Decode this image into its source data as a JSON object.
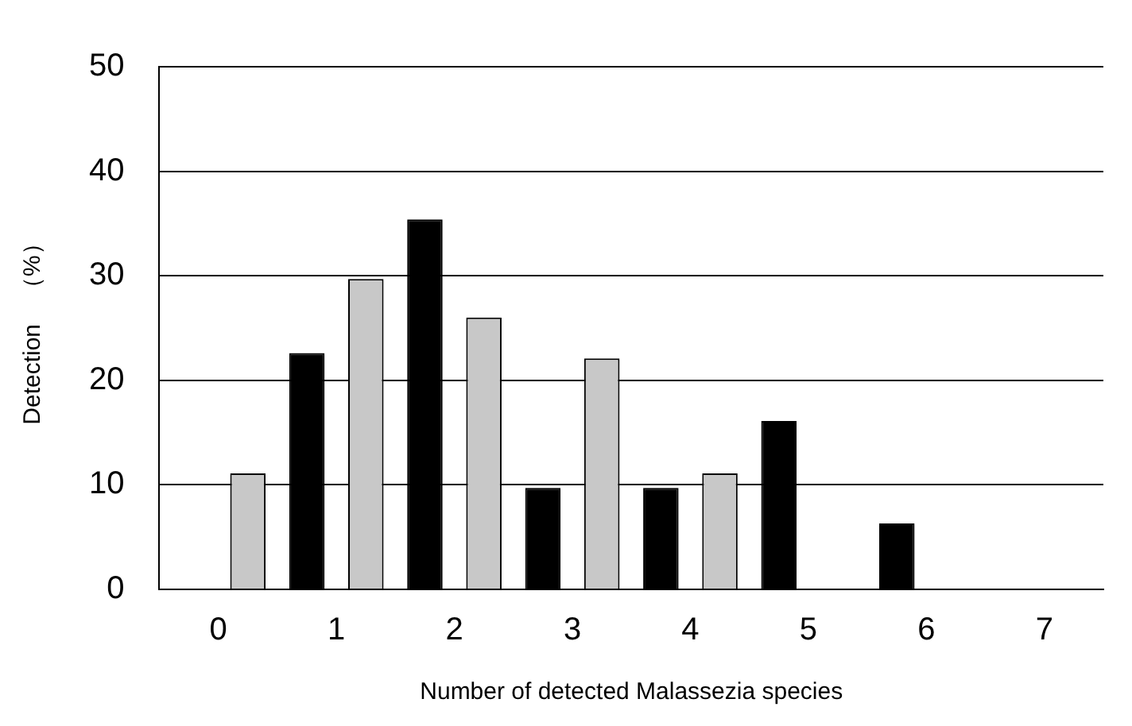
{
  "chart_data": {
    "type": "bar",
    "xlabel": "Number of detected Malassezia species",
    "ylabel": "Detection　（%）",
    "categories": [
      "0",
      "1",
      "2",
      "3",
      "4",
      "5",
      "6",
      "7"
    ],
    "series": [
      {
        "color": "#000000",
        "values": [
          0,
          22.6,
          35.4,
          9.7,
          9.7,
          16.1,
          6.3,
          0
        ]
      },
      {
        "color": "#c8c8c8",
        "values": [
          11.1,
          29.7,
          26.0,
          22.1,
          11.1,
          0,
          0,
          0
        ]
      }
    ],
    "ylim": [
      0,
      50
    ],
    "yticks": [
      0,
      10,
      20,
      30,
      40,
      50
    ],
    "grid": "y",
    "legend": false
  }
}
